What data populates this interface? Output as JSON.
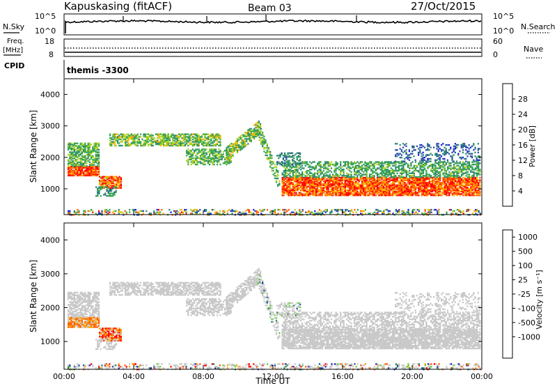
{
  "header": {
    "station": "Kapuskasing (fitACF)",
    "beam": "Beam 03",
    "date": "27/Oct/2015"
  },
  "noise_panel": {
    "left_label": "N.Sky",
    "right_label": "N.Search",
    "left_ticks": [
      "10^5",
      "10^0"
    ],
    "right_ticks": [
      "10^5",
      "10^0"
    ]
  },
  "freq_panel": {
    "left_label_top": "Freq.",
    "left_label_unit": "[MHz]",
    "right_label": "Nave",
    "left_ticks": [
      "18",
      "8"
    ],
    "right_ticks": [
      "60",
      "0"
    ]
  },
  "cpid_panel": {
    "label": "CPID",
    "program": "themis -3300"
  },
  "time_axis": {
    "label": "Time UT",
    "ticks": [
      "00:00",
      "04:00",
      "08:00",
      "12:00",
      "16:00",
      "20:00",
      "00:00"
    ]
  },
  "colors": {
    "power_scale": [
      "#1a1aee",
      "#2a4faa",
      "#2d8a6a",
      "#35a850",
      "#b0d020",
      "#ffb000",
      "#ff5a00",
      "#ff0000"
    ],
    "velocity_scale": [
      "#ff0000",
      "#ff5a00",
      "#ff9a00",
      "#c8c8c8",
      "#c8c8c8",
      "#5ed030",
      "#2d8a4a",
      "#1a4faa",
      "#2020c0"
    ],
    "ground_scatter_gray": "#c8c8c8"
  },
  "chart_data": [
    {
      "type": "heatmap",
      "name": "power",
      "ylabel": "Slant Range [km]",
      "xlabel": "",
      "yticks": [
        1000,
        2000,
        3000,
        4000
      ],
      "ylim": [
        180,
        4500
      ],
      "xlim_hours": [
        0,
        24
      ],
      "colorbar_label": "Power [dB]",
      "colorbar_ticks": [
        "4",
        "8",
        "12",
        "16",
        "20",
        "24",
        "28"
      ],
      "clim": [
        0,
        32
      ]
    },
    {
      "type": "heatmap",
      "name": "velocity",
      "ylabel": "Slant Range [km]",
      "xlabel": "Time UT",
      "yticks": [
        1000,
        2000,
        3000,
        4000
      ],
      "ylim": [
        180,
        4500
      ],
      "xlim_hours": [
        0,
        24
      ],
      "colorbar_label": "Velocity [m s⁻¹]",
      "colorbar_ticks": [
        "1000",
        "500",
        "100",
        "25",
        "-25",
        "-100",
        "-500",
        "-1000"
      ],
      "clim": [
        -1000,
        1000
      ]
    }
  ]
}
